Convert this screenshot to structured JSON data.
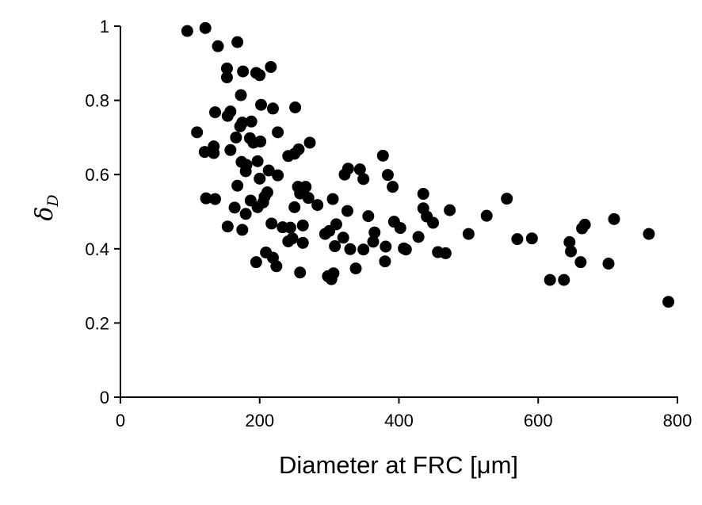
{
  "chart_data": {
    "type": "scatter",
    "title": "",
    "xlabel": "Diameter at FRC [μm]",
    "ylabel": {
      "symbol": "δ",
      "subscript": "D"
    },
    "xlim": [
      0,
      800
    ],
    "ylim": [
      0,
      1
    ],
    "x_ticks": [
      "0",
      "200",
      "400",
      "600",
      "800"
    ],
    "y_ticks": [
      "0",
      "0.2",
      "0.4",
      "0.6",
      "0.8",
      "1"
    ],
    "grid": false,
    "legend": "none",
    "marker_color": "#000000",
    "points": [
      [
        96,
        0.987
      ],
      [
        122,
        0.995
      ],
      [
        168,
        0.957
      ],
      [
        140,
        0.946
      ],
      [
        153,
        0.886
      ],
      [
        216,
        0.89
      ],
      [
        176,
        0.878
      ],
      [
        153,
        0.862
      ],
      [
        195,
        0.874
      ],
      [
        200,
        0.868
      ],
      [
        173,
        0.814
      ],
      [
        202,
        0.788
      ],
      [
        219,
        0.778
      ],
      [
        251,
        0.781
      ],
      [
        136,
        0.768
      ],
      [
        158,
        0.77
      ],
      [
        154,
        0.758
      ],
      [
        175,
        0.74
      ],
      [
        188,
        0.743
      ],
      [
        172,
        0.73
      ],
      [
        110,
        0.714
      ],
      [
        226,
        0.714
      ],
      [
        166,
        0.7
      ],
      [
        186,
        0.698
      ],
      [
        191,
        0.686
      ],
      [
        201,
        0.689
      ],
      [
        272,
        0.686
      ],
      [
        134,
        0.676
      ],
      [
        121,
        0.661
      ],
      [
        134,
        0.658
      ],
      [
        158,
        0.666
      ],
      [
        256,
        0.668
      ],
      [
        241,
        0.65
      ],
      [
        250,
        0.656
      ],
      [
        197,
        0.636
      ],
      [
        174,
        0.634
      ],
      [
        181,
        0.626
      ],
      [
        180,
        0.609
      ],
      [
        213,
        0.611
      ],
      [
        226,
        0.598
      ],
      [
        200,
        0.589
      ],
      [
        322,
        0.6
      ],
      [
        327,
        0.616
      ],
      [
        344,
        0.614
      ],
      [
        349,
        0.588
      ],
      [
        384,
        0.599
      ],
      [
        377,
        0.651
      ],
      [
        168,
        0.57
      ],
      [
        255,
        0.567
      ],
      [
        266,
        0.567
      ],
      [
        391,
        0.567
      ],
      [
        211,
        0.552
      ],
      [
        207,
        0.54
      ],
      [
        258,
        0.549
      ],
      [
        435,
        0.548
      ],
      [
        270,
        0.537
      ],
      [
        305,
        0.534
      ],
      [
        123,
        0.536
      ],
      [
        136,
        0.534
      ],
      [
        187,
        0.53
      ],
      [
        205,
        0.525
      ],
      [
        197,
        0.512
      ],
      [
        250,
        0.512
      ],
      [
        283,
        0.518
      ],
      [
        555,
        0.535
      ],
      [
        164,
        0.511
      ],
      [
        435,
        0.509
      ],
      [
        326,
        0.502
      ],
      [
        473,
        0.504
      ],
      [
        180,
        0.494
      ],
      [
        356,
        0.488
      ],
      [
        440,
        0.487
      ],
      [
        526,
        0.489
      ],
      [
        217,
        0.468
      ],
      [
        262,
        0.463
      ],
      [
        310,
        0.466
      ],
      [
        393,
        0.473
      ],
      [
        449,
        0.47
      ],
      [
        709,
        0.48
      ],
      [
        667,
        0.465
      ],
      [
        663,
        0.455
      ],
      [
        154,
        0.46
      ],
      [
        175,
        0.451
      ],
      [
        233,
        0.458
      ],
      [
        244,
        0.457
      ],
      [
        300,
        0.448
      ],
      [
        402,
        0.456
      ],
      [
        365,
        0.444
      ],
      [
        500,
        0.44
      ],
      [
        759,
        0.44
      ],
      [
        247,
        0.428
      ],
      [
        241,
        0.42
      ],
      [
        294,
        0.44
      ],
      [
        320,
        0.43
      ],
      [
        428,
        0.432
      ],
      [
        570,
        0.426
      ],
      [
        591,
        0.428
      ],
      [
        363,
        0.419
      ],
      [
        381,
        0.406
      ],
      [
        645,
        0.418
      ],
      [
        262,
        0.416
      ],
      [
        308,
        0.407
      ],
      [
        330,
        0.399
      ],
      [
        349,
        0.398
      ],
      [
        407,
        0.401
      ],
      [
        410,
        0.398
      ],
      [
        456,
        0.391
      ],
      [
        467,
        0.388
      ],
      [
        647,
        0.393
      ],
      [
        209,
        0.39
      ],
      [
        219,
        0.376
      ],
      [
        195,
        0.364
      ],
      [
        380,
        0.366
      ],
      [
        661,
        0.364
      ],
      [
        701,
        0.36
      ],
      [
        224,
        0.353
      ],
      [
        338,
        0.347
      ],
      [
        258,
        0.336
      ],
      [
        306,
        0.334
      ],
      [
        298,
        0.326
      ],
      [
        303,
        0.318
      ],
      [
        617,
        0.316
      ],
      [
        637,
        0.316
      ],
      [
        787,
        0.257
      ]
    ]
  }
}
